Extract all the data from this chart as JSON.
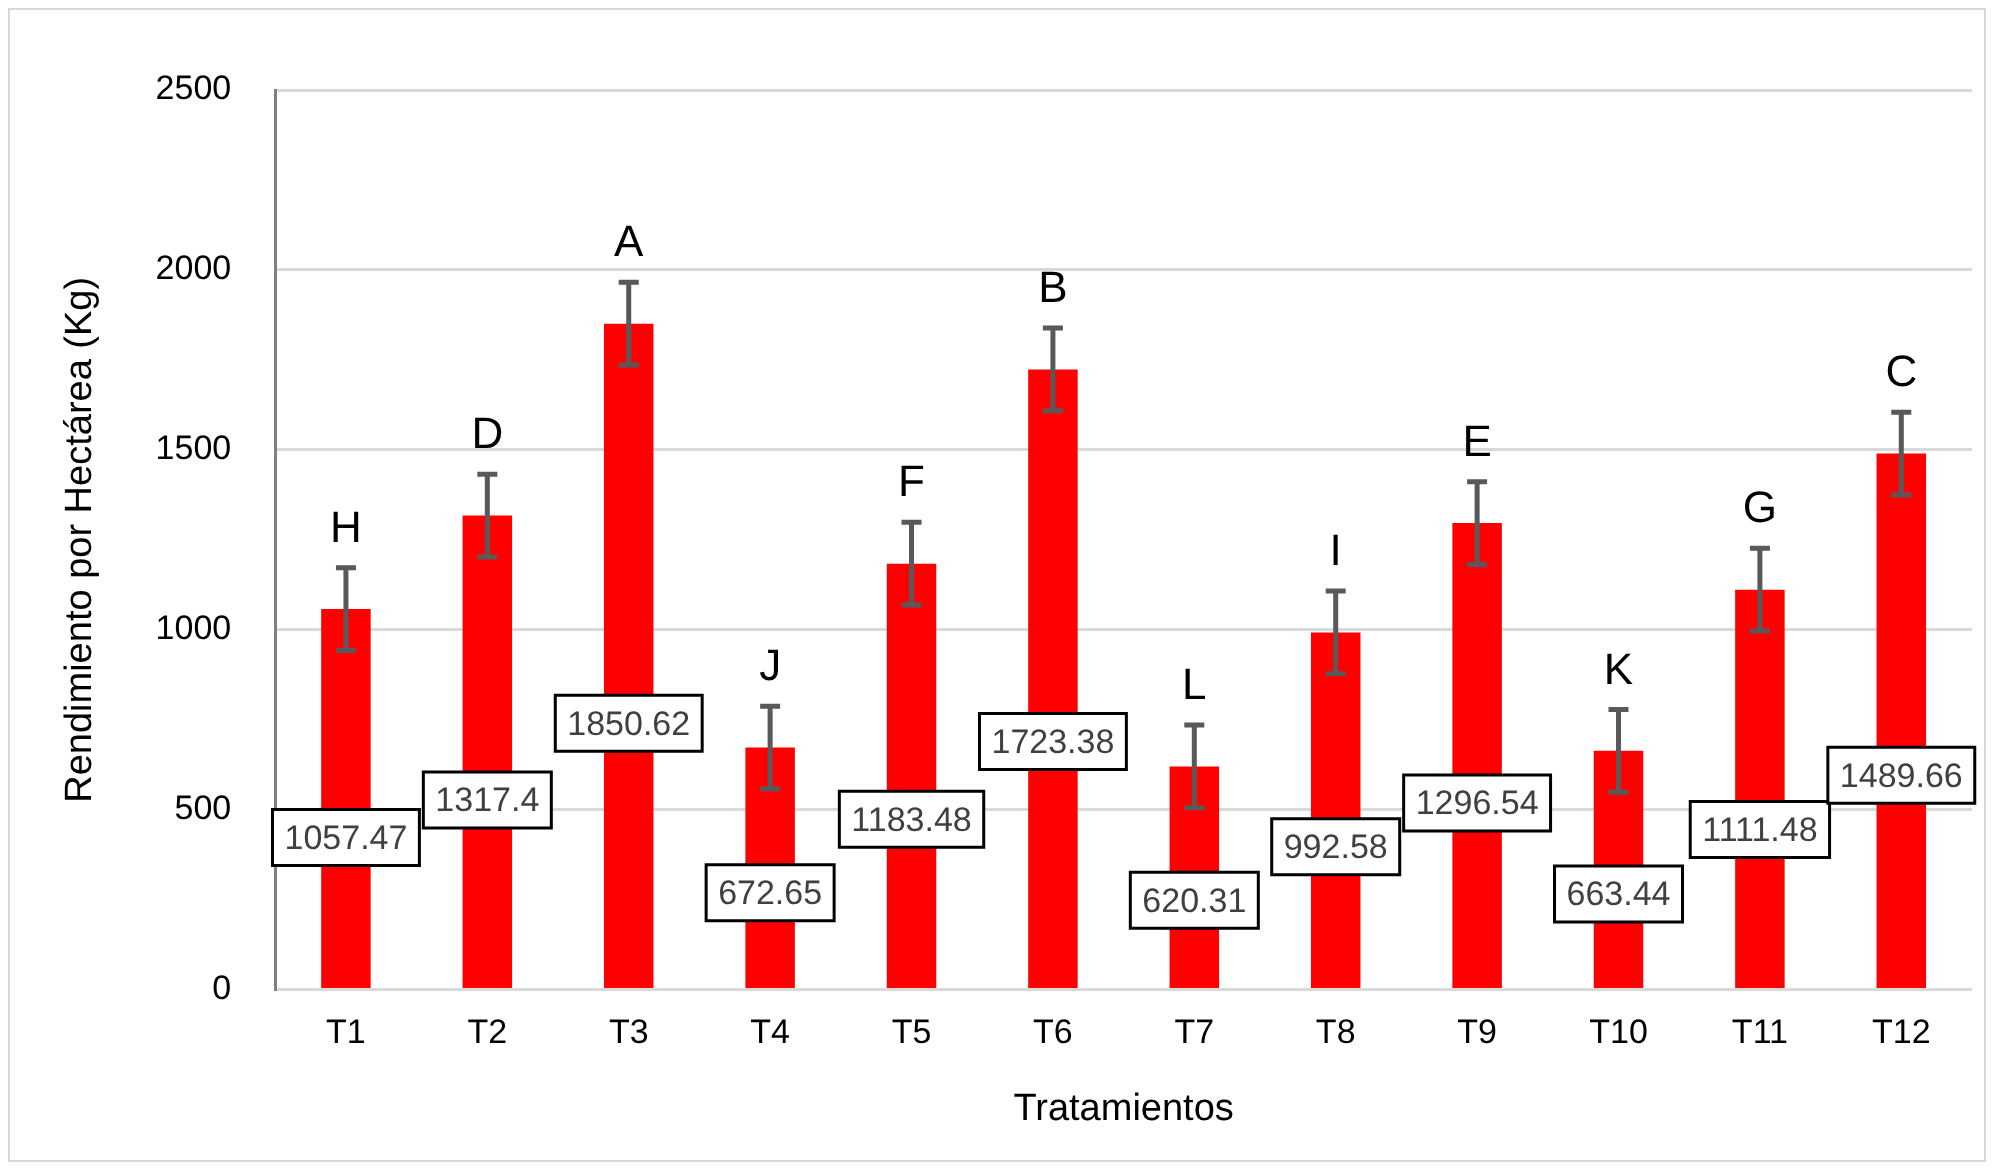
{
  "chart_data": {
    "type": "bar",
    "xlabel": "Tratamientos",
    "ylabel": "Rendimiento por Hectárea (Kg)",
    "categories": [
      "T1",
      "T2",
      "T3",
      "T4",
      "T5",
      "T6",
      "T7",
      "T8",
      "T9",
      "T10",
      "T11",
      "T12"
    ],
    "values": [
      1057.47,
      1317.4,
      1850.62,
      672.65,
      1183.48,
      1723.38,
      620.31,
      992.58,
      1296.54,
      663.44,
      1111.48,
      1489.66
    ],
    "errors": [
      115,
      115,
      115,
      115,
      115,
      115,
      115,
      115,
      115,
      115,
      115,
      115
    ],
    "color": "#ff0000",
    "ylim": [
      0,
      2500
    ],
    "yticks": [
      0,
      500,
      1000,
      1500,
      2000,
      2500
    ],
    "grid": "y",
    "legend": false,
    "data_labels": true,
    "annotations": [
      "H",
      "D",
      "A",
      "J",
      "F",
      "B",
      "L",
      "I",
      "E",
      "K",
      "G",
      "C"
    ]
  }
}
